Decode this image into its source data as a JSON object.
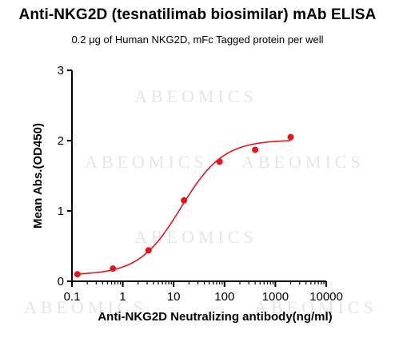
{
  "chart_data": {
    "type": "scatter",
    "title": "Anti-NKG2D (tesnatilimab biosimilar) mAb ELISA",
    "subtitle": "0.2 μg of Human NKG2D, mFc Tagged protein per well",
    "xlabel": "Anti-NKG2D Neutralizing antibody(ng/ml)",
    "ylabel": "Mean Abs.(OD450)",
    "x_scale": "log",
    "xlim": [
      0.1,
      10000
    ],
    "ylim": [
      0,
      3
    ],
    "x_ticks": [
      0.1,
      1,
      10,
      100,
      1000,
      10000
    ],
    "x_tick_labels": [
      "0.1",
      "1",
      "10",
      "100",
      "1000",
      "10000"
    ],
    "y_ticks": [
      0,
      1,
      2,
      3
    ],
    "y_tick_labels": [
      "0",
      "1",
      "2",
      "3"
    ],
    "grid": false,
    "legend": "none",
    "series": [
      {
        "x": [
          0.128,
          0.64,
          3.2,
          16,
          80,
          400,
          2000
        ],
        "y": [
          0.1,
          0.18,
          0.44,
          1.15,
          1.7,
          1.87,
          2.05
        ],
        "color": "#e8141a",
        "fit": "four-parameter logistic curve"
      }
    ]
  },
  "watermark": {
    "text": "ABEOMICS",
    "color": "#d4d4d4"
  }
}
